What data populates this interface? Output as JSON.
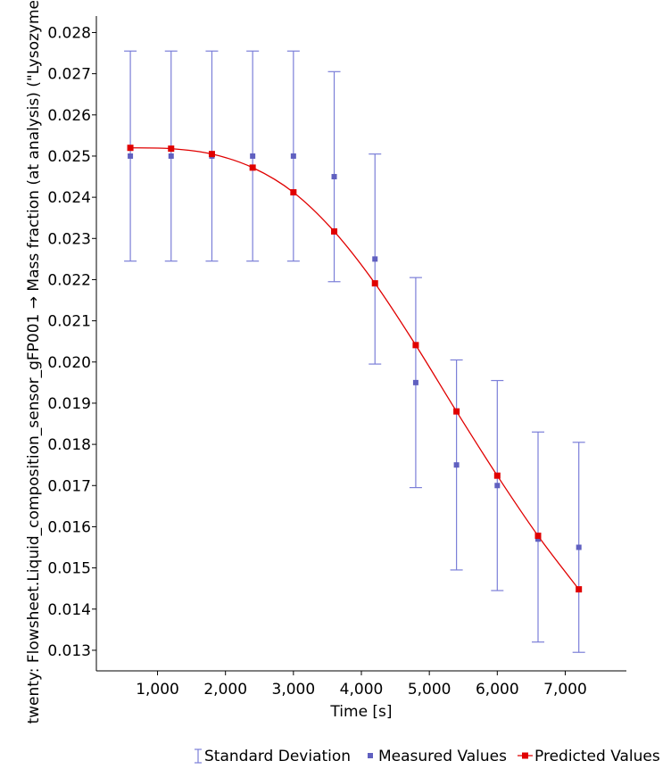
{
  "chart_data": {
    "type": "scatter",
    "xlabel": "Time [s]",
    "ylabel": "twenty: Flowsheet.Liquid_composition_sensor_gFP001 → Mass fraction (at analysis) (\"Lysozyme",
    "xlim": [
      100,
      7900
    ],
    "ylim": [
      0.0125,
      0.0284
    ],
    "x_ticks": [
      1000,
      2000,
      3000,
      4000,
      5000,
      6000,
      7000
    ],
    "x_tick_labels": [
      "1,000",
      "2,000",
      "3,000",
      "4,000",
      "5,000",
      "6,000",
      "7,000"
    ],
    "y_ticks": [
      0.013,
      0.014,
      0.015,
      0.016,
      0.017,
      0.018,
      0.019,
      0.02,
      0.021,
      0.022,
      0.023,
      0.024,
      0.025,
      0.026,
      0.027,
      0.028
    ],
    "y_tick_labels": [
      "0.013",
      "0.014",
      "0.015",
      "0.016",
      "0.017",
      "0.018",
      "0.019",
      "0.020",
      "0.021",
      "0.022",
      "0.023",
      "0.024",
      "0.025",
      "0.026",
      "0.027",
      "0.028"
    ],
    "grid": false,
    "legend_position": "bottom",
    "x": [
      600,
      1200,
      1800,
      2400,
      3000,
      3600,
      4200,
      4800,
      5400,
      6000,
      6600,
      7200
    ],
    "series": [
      {
        "name": "Standard Deviation",
        "kind": "errorbar",
        "color": "#7b7fd8",
        "lower": [
          0.02245,
          0.02245,
          0.02245,
          0.02245,
          0.02245,
          0.02195,
          0.01995,
          0.01695,
          0.01495,
          0.01445,
          0.0132,
          0.01295
        ],
        "upper": [
          0.02755,
          0.02755,
          0.02755,
          0.02755,
          0.02755,
          0.02705,
          0.02505,
          0.02205,
          0.02005,
          0.01955,
          0.0183,
          0.01805
        ]
      },
      {
        "name": "Measured Values",
        "kind": "markers",
        "color": "#6060c0",
        "values": [
          0.025,
          0.025,
          0.025,
          0.025,
          0.025,
          0.0245,
          0.0225,
          0.0195,
          0.0175,
          0.017,
          0.0157,
          0.0155
        ]
      },
      {
        "name": "Predicted Values",
        "kind": "line-markers",
        "color": "#e00000",
        "values": [
          0.0252,
          0.02518,
          0.02505,
          0.02472,
          0.02412,
          0.02317,
          0.02191,
          0.02041,
          0.0188,
          0.01724,
          0.01578,
          0.01448
        ]
      }
    ]
  }
}
